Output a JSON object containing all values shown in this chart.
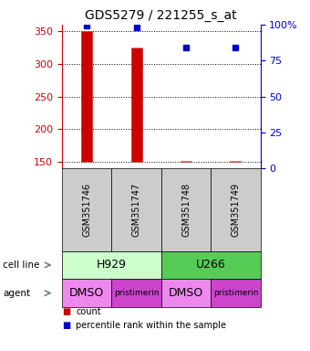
{
  "title": "GDS5279 / 221255_s_at",
  "samples": [
    "GSM351746",
    "GSM351747",
    "GSM351748",
    "GSM351749"
  ],
  "count_values": [
    350,
    325,
    152,
    152
  ],
  "count_base": 150,
  "percentile_values": [
    99,
    98,
    84,
    84
  ],
  "ylim_left": [
    140,
    360
  ],
  "ylim_right": [
    0,
    100
  ],
  "yticks_left": [
    150,
    200,
    250,
    300,
    350
  ],
  "yticks_right": [
    0,
    25,
    50,
    75,
    100
  ],
  "bar_color": "#cc0000",
  "dot_color": "#0000cc",
  "cell_line_colors": [
    "#ccffcc",
    "#55cc55"
  ],
  "sample_box_color": "#cccccc",
  "left_axis_color": "#cc0000",
  "right_axis_color": "#0000cc",
  "agent_dmso_color": "#ee88ee",
  "agent_prist_color": "#cc44cc"
}
